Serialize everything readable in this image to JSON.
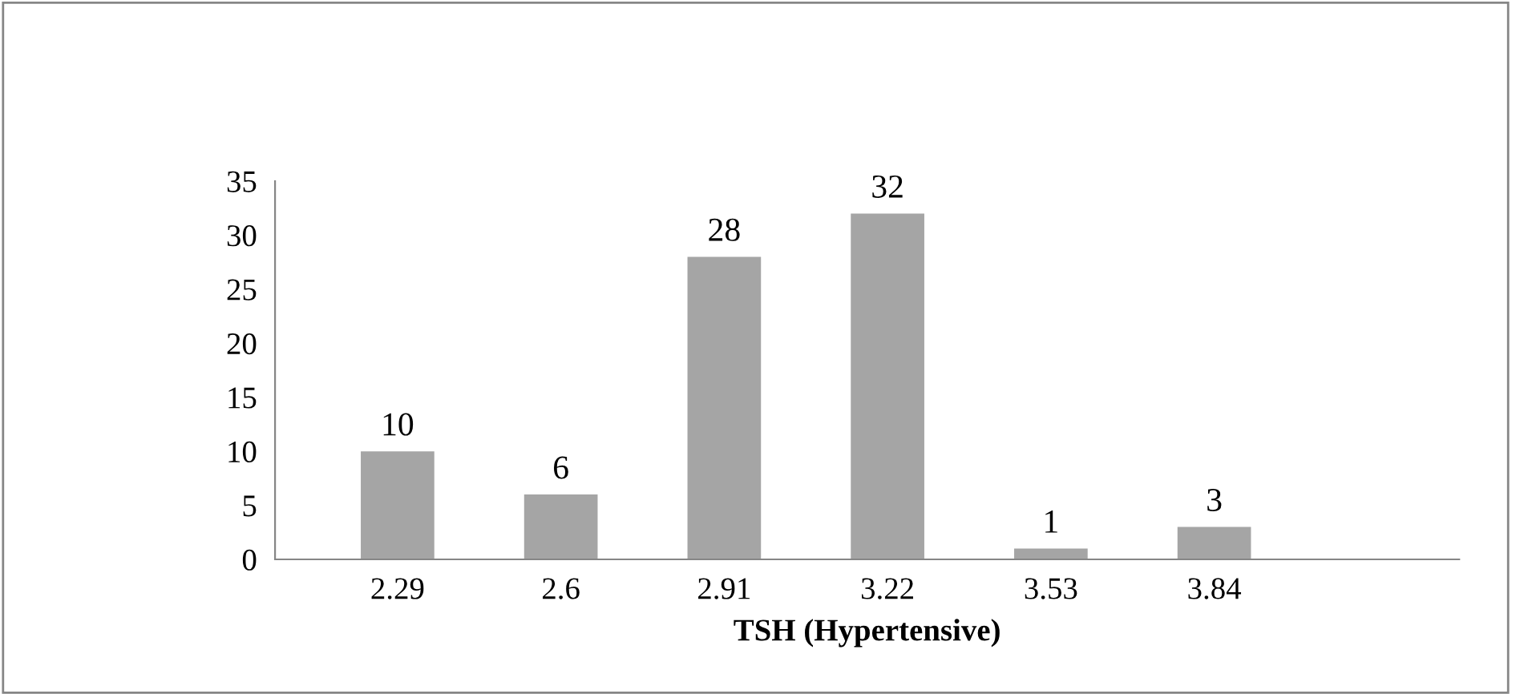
{
  "chart_data": {
    "type": "bar",
    "xlabel": "TSH (Hypertensive)",
    "categories": [
      "2.29",
      "2.6",
      "2.91",
      "3.22",
      "3.53",
      "3.84",
      null
    ],
    "values": [
      10,
      6,
      28,
      32,
      1,
      3,
      null
    ],
    "color": "#a5a5a5",
    "ylim": [
      0,
      35
    ],
    "yticks": [
      0,
      5,
      10,
      15,
      20,
      25,
      30,
      35
    ],
    "data_labels": true,
    "grid": false,
    "legend": false
  }
}
